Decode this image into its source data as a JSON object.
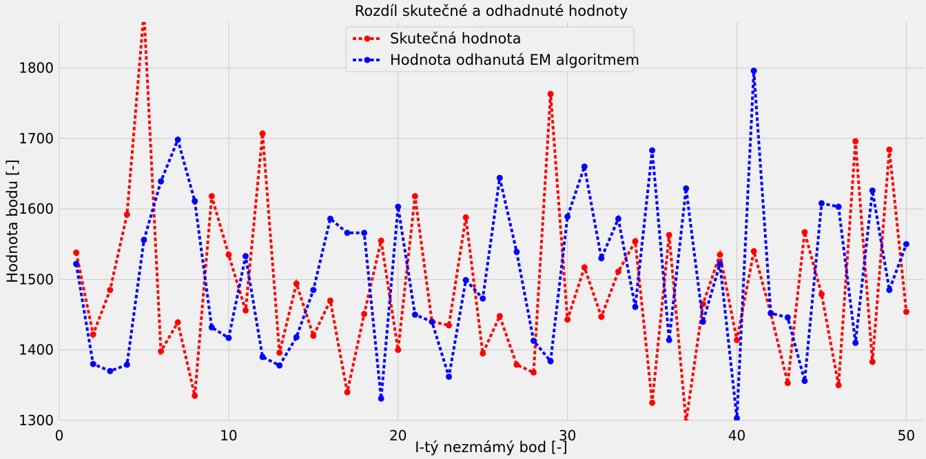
{
  "chart_data": {
    "type": "line",
    "title": "Rozdíl skutečné a odhadnuté hodnoty",
    "xlabel": "I-tý nezmámý bod [-]",
    "ylabel": "Hodnota bodu [-]",
    "xlim": [
      0,
      51
    ],
    "ylim": [
      1300,
      1865
    ],
    "xticks": [
      0,
      10,
      20,
      30,
      40,
      50
    ],
    "yticks": [
      1300,
      1400,
      1500,
      1600,
      1700,
      1800
    ],
    "grid": true,
    "legend_position": "top-center",
    "x": [
      1,
      2,
      3,
      4,
      5,
      6,
      7,
      8,
      9,
      10,
      11,
      12,
      13,
      14,
      15,
      16,
      17,
      18,
      19,
      20,
      21,
      22,
      23,
      24,
      25,
      26,
      27,
      28,
      29,
      30,
      31,
      32,
      33,
      34,
      35,
      36,
      37,
      38,
      39,
      40,
      41,
      42,
      43,
      44,
      45,
      46,
      47,
      48,
      49,
      50
    ],
    "series": [
      {
        "name": "Skutečná hodnota",
        "color": "#ff0000",
        "values": [
          1538,
          1422,
          1485,
          1592,
          1880,
          1398,
          1439,
          1335,
          1618,
          1535,
          1456,
          1707,
          1396,
          1494,
          1420,
          1470,
          1340,
          1451,
          1555,
          1400,
          1618,
          1440,
          1435,
          1588,
          1395,
          1448,
          1379,
          1368,
          1763,
          1443,
          1517,
          1447,
          1511,
          1554,
          1325,
          1563,
          1298,
          1465,
          1535,
          1414,
          1540,
          1452,
          1353,
          1567,
          1479,
          1350,
          1696,
          1383,
          1684,
          1454
        ]
      },
      {
        "name": "Hodnota odhanutá EM algoritmem",
        "color": "#0000ff",
        "values": [
          1522,
          1380,
          1370,
          1379,
          1556,
          1639,
          1698,
          1611,
          1432,
          1417,
          1533,
          1390,
          1378,
          1418,
          1485,
          1586,
          1566,
          1566,
          1331,
          1603,
          1450,
          1440,
          1362,
          1499,
          1473,
          1644,
          1539,
          1413,
          1384,
          1589,
          1660,
          1530,
          1586,
          1461,
          1683,
          1414,
          1629,
          1440,
          1522,
          1303,
          1796,
          1452,
          1446,
          1356,
          1608,
          1603,
          1410,
          1626,
          1485,
          1550
        ]
      }
    ]
  }
}
